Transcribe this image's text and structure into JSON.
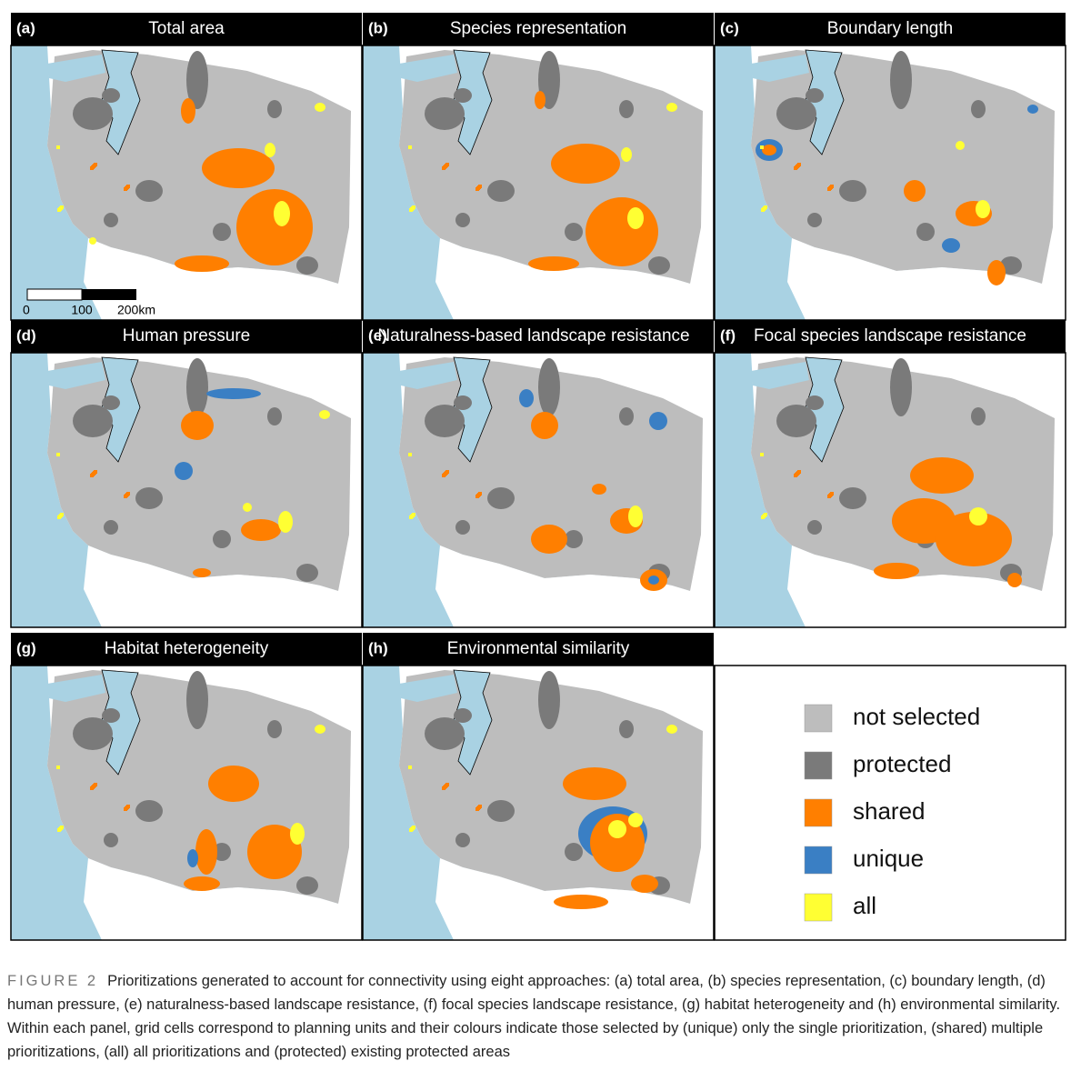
{
  "panels": [
    {
      "label": "(a)",
      "title": "Total area"
    },
    {
      "label": "(b)",
      "title": "Species representation"
    },
    {
      "label": "(c)",
      "title": "Boundary length"
    },
    {
      "label": "(d)",
      "title": "Human pressure"
    },
    {
      "label": "(e)",
      "title": "Naturalness-based landscape resistance"
    },
    {
      "label": "(f)",
      "title": "Focal species landscape resistance"
    },
    {
      "label": "(g)",
      "title": "Habitat heterogeneity"
    },
    {
      "label": "(h)",
      "title": "Environmental similarity"
    }
  ],
  "scale_bar": {
    "labels": [
      "0",
      "100",
      "200km"
    ]
  },
  "legend": {
    "items": [
      {
        "label": "not selected",
        "color": "#bdbdbd"
      },
      {
        "label": "protected",
        "color": "#7a7a7a"
      },
      {
        "label": "shared",
        "color": "#ff7f00"
      },
      {
        "label": "unique",
        "color": "#3a7fc4"
      },
      {
        "label": "all",
        "color": "#ffff33"
      }
    ]
  },
  "caption": {
    "label": "FIGURE 2",
    "text": "Prioritizations generated to account for connectivity using eight approaches: (a) total area, (b) species representation, (c) boundary length, (d) human pressure, (e) naturalness-based landscape resistance, (f) focal species landscape resistance, (g) habitat heterogeneity and (h) environmental similarity. Within each panel, grid cells correspond to planning units and their colours indicate those selected by (unique) only the single prioritization, (shared) multiple prioritizations, (all) all prioritizations and (protected) existing protected areas"
  }
}
